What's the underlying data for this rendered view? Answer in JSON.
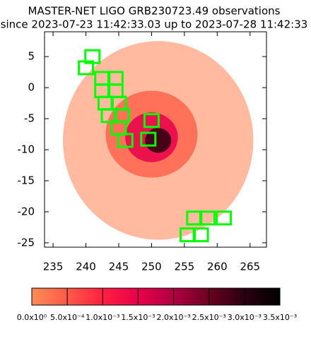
{
  "chart_data": {
    "type": "skymap",
    "title": "MASTER-NET LIGO GRB230723.49 observations",
    "subtitle": "since 2023-07-23 11:42:33.03 up to 2023-07-28 11:42:33",
    "xlim": [
      233.7,
      267.5
    ],
    "xticks": [
      235,
      240,
      245,
      250,
      255,
      260,
      265
    ],
    "ylim": [
      -25.7,
      9
    ],
    "yticks": [
      5,
      0,
      -5,
      -10,
      -15,
      -20,
      -25
    ],
    "regions": {
      "x": [
        251,
        250,
        250,
        251
      ],
      "y": [
        -8.5,
        -7.5,
        -8,
        -8.5
      ],
      "rx": [
        14.5,
        7,
        4,
        2
      ],
      "ry": [
        16,
        7,
        4,
        2
      ],
      "values": [
        0.0001,
        0.0004,
        0.0015,
        0.003
      ]
    },
    "fields": {
      "color": "#00ff00",
      "x": [
        241,
        240,
        242.5,
        244.5,
        242.5,
        244.5,
        243,
        245,
        243.5,
        245.5,
        245,
        246,
        250,
        249.5,
        256.5,
        258.5,
        261,
        255.5,
        257.5
      ],
      "y": [
        5,
        3.2,
        1.5,
        1.5,
        -0.5,
        -0.5,
        -2.5,
        -2.5,
        -4.5,
        -4.5,
        -6.5,
        -8.5,
        -5.3,
        -8.3,
        -21,
        -21,
        -21,
        -23.7,
        -23.7
      ]
    },
    "colorbar": {
      "lim": [
        0,
        0.0035
      ],
      "colors": [
        "#ff8c55",
        "#ff5a48",
        "#ff2040",
        "#e8004a",
        "#b00040",
        "#6a0020",
        "#2a0010",
        "#000000"
      ],
      "ticks": [
        {
          "value": 0,
          "label": "0.0x10⁰"
        },
        {
          "value": 0.0005,
          "label": "5.0x10⁻⁴"
        },
        {
          "value": 0.001,
          "label": "1.0x10⁻³"
        },
        {
          "value": 0.0015,
          "label": "1.5x10⁻³"
        },
        {
          "value": 0.002,
          "label": "2.0x10⁻³"
        },
        {
          "value": 0.0025,
          "label": "2.5x10⁻³"
        },
        {
          "value": 0.003,
          "label": "3.0x10⁻³"
        },
        {
          "value": 0.0035,
          "label": "3.5x10⁻³"
        }
      ]
    }
  }
}
